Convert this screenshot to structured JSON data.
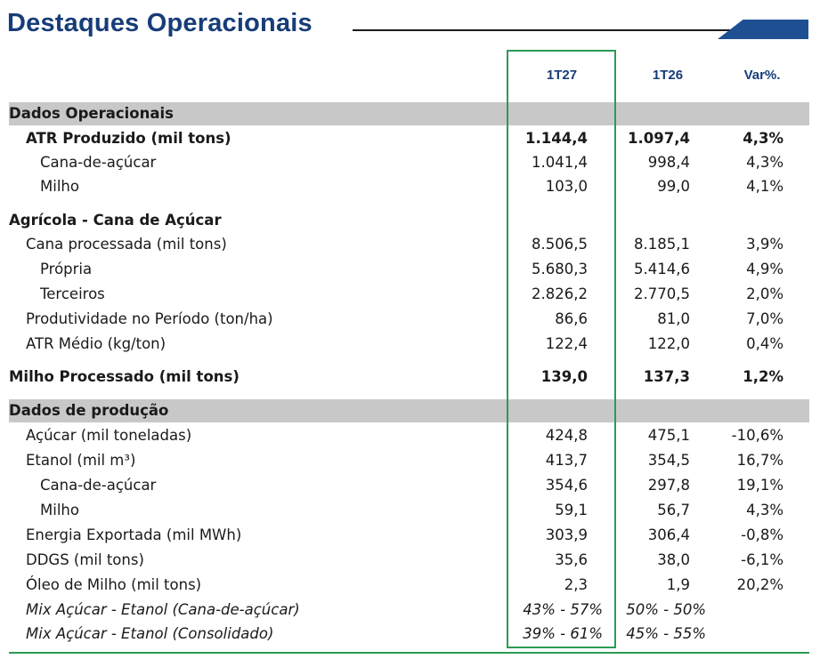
{
  "header": {
    "title": "Destaques Operacionais"
  },
  "columns": {
    "c1": "1T27",
    "c2": "1T26",
    "c3": "Var%."
  },
  "rows": [
    {
      "label": "Dados Operacionais",
      "v1": "",
      "v2": "",
      "v3": ""
    },
    {
      "label": "ATR Produzido (mil tons)",
      "v1": "1.144,4",
      "v2": "1.097,4",
      "v3": "4,3%"
    },
    {
      "label": "Cana-de-açúcar",
      "v1": "1.041,4",
      "v2": "998,4",
      "v3": "4,3%"
    },
    {
      "label": "Milho",
      "v1": "103,0",
      "v2": "99,0",
      "v3": "4,1%"
    },
    {
      "label": "Agrícola - Cana de Açúcar",
      "v1": "",
      "v2": "",
      "v3": ""
    },
    {
      "label": "Cana processada (mil tons)",
      "v1": "8.506,5",
      "v2": "8.185,1",
      "v3": "3,9%"
    },
    {
      "label": "Própria",
      "v1": "5.680,3",
      "v2": "5.414,6",
      "v3": "4,9%"
    },
    {
      "label": "Terceiros",
      "v1": "2.826,2",
      "v2": "2.770,5",
      "v3": "2,0%"
    },
    {
      "label": "Produtividade no Período (ton/ha)",
      "v1": "86,6",
      "v2": "81,0",
      "v3": "7,0%"
    },
    {
      "label": "ATR Médio (kg/ton)",
      "v1": "122,4",
      "v2": "122,0",
      "v3": "0,4%"
    },
    {
      "label": "Milho Processado (mil tons)",
      "v1": "139,0",
      "v2": "137,3",
      "v3": "1,2%"
    },
    {
      "label": "Dados de produção",
      "v1": "",
      "v2": "",
      "v3": ""
    },
    {
      "label": "Açúcar (mil toneladas)",
      "v1": "424,8",
      "v2": "475,1",
      "v3": "-10,6%"
    },
    {
      "label": "Etanol (mil m³)",
      "v1": "413,7",
      "v2": "354,5",
      "v3": "16,7%"
    },
    {
      "label": "Cana-de-açúcar",
      "v1": "354,6",
      "v2": "297,8",
      "v3": "19,1%"
    },
    {
      "label": "Milho",
      "v1": "59,1",
      "v2": "56,7",
      "v3": "4,3%"
    },
    {
      "label": "Energia Exportada (mil MWh)",
      "v1": "303,9",
      "v2": "306,4",
      "v3": "-0,8%"
    },
    {
      "label": "DDGS (mil tons)",
      "v1": "35,6",
      "v2": "38,0",
      "v3": "-6,1%"
    },
    {
      "label": "Óleo de Milho (mil tons)",
      "v1": "2,3",
      "v2": "1,9",
      "v3": "20,2%"
    },
    {
      "label": "Mix Açúcar - Etanol (Cana-de-açúcar)",
      "v1": "43% - 57%",
      "v2": "50% - 50%",
      "v3": ""
    },
    {
      "label": "Mix Açúcar - Etanol (Consolidado)",
      "v1": "39% - 61%",
      "v2": "45% - 55%",
      "v3": ""
    }
  ]
}
